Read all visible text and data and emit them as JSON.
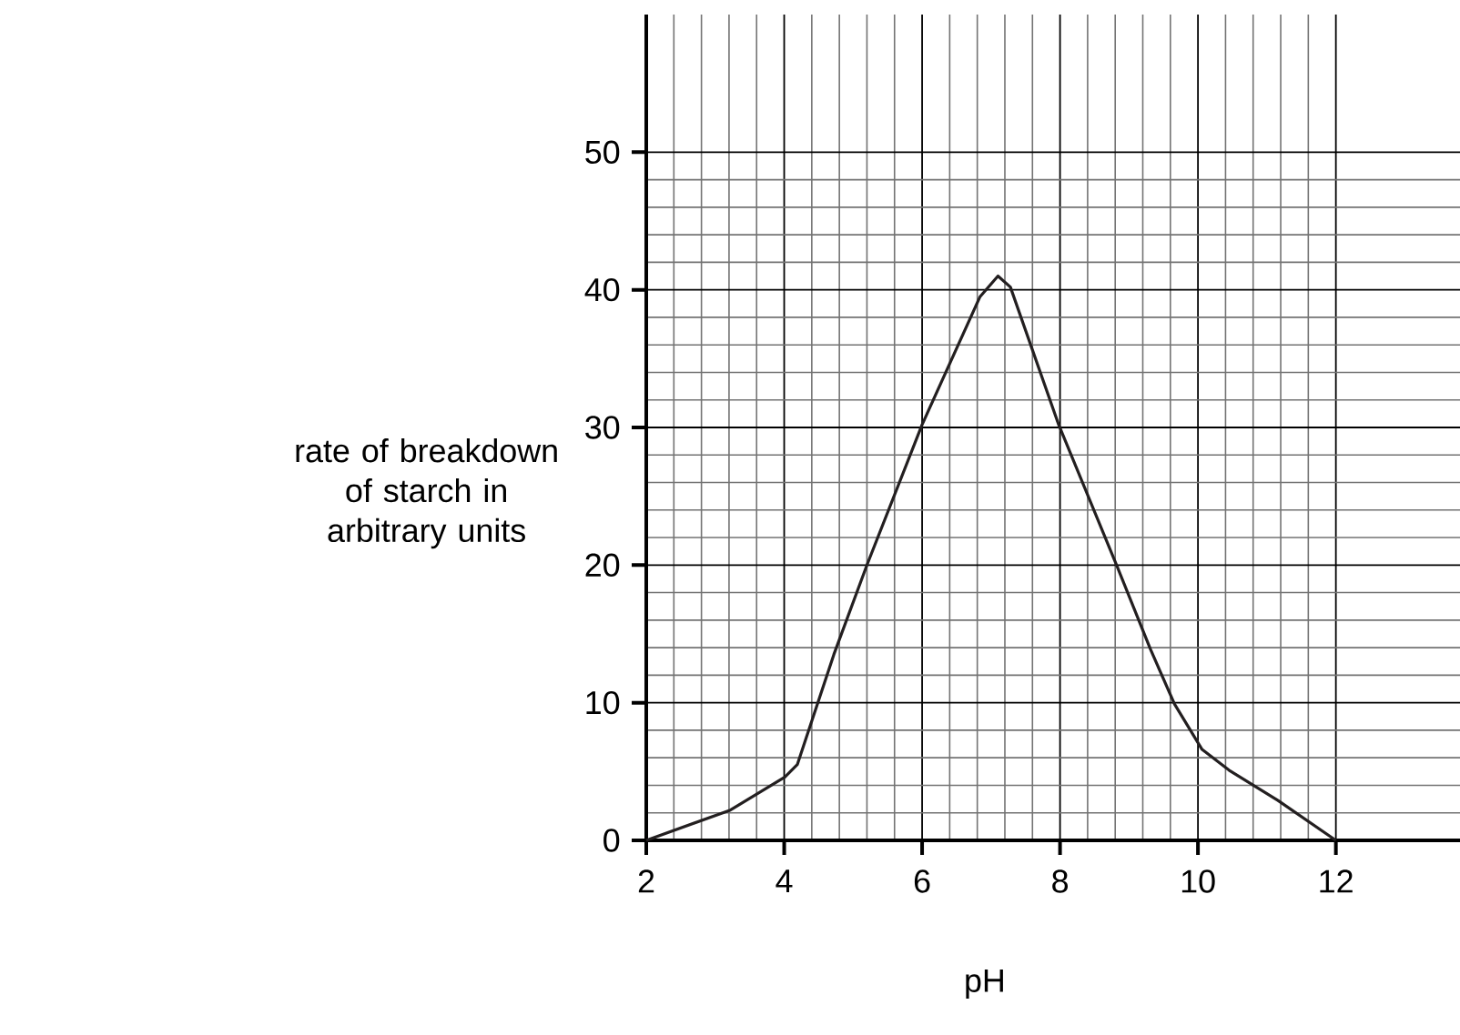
{
  "chart_data": {
    "type": "line",
    "xlabel": "pH",
    "ylabel": "rate of breakdown of starch in arbitrary units",
    "x": [
      2,
      3.22,
      4.01,
      4.19,
      4.72,
      5.2,
      6,
      6.84,
      7.1,
      7.28,
      7.98,
      8.82,
      9.31,
      9.66,
      10.06,
      10.45,
      11.16,
      12
    ],
    "series": [
      {
        "color": "#231f20",
        "values": [
          0,
          2.2,
          4.6,
          5.5,
          13.5,
          20,
          30.2,
          39.5,
          41,
          40.2,
          30.2,
          20,
          13.9,
          9.9,
          6.6,
          5.1,
          2.9,
          0
        ]
      }
    ],
    "xlim": [
      2,
      13.8
    ],
    "ylim": [
      0,
      60
    ],
    "xticks": [
      2,
      4,
      6,
      8,
      10,
      12
    ],
    "yticks": [
      0,
      10,
      20,
      30,
      40,
      50
    ],
    "grid": true,
    "marker": "none",
    "line_style": "solid"
  }
}
